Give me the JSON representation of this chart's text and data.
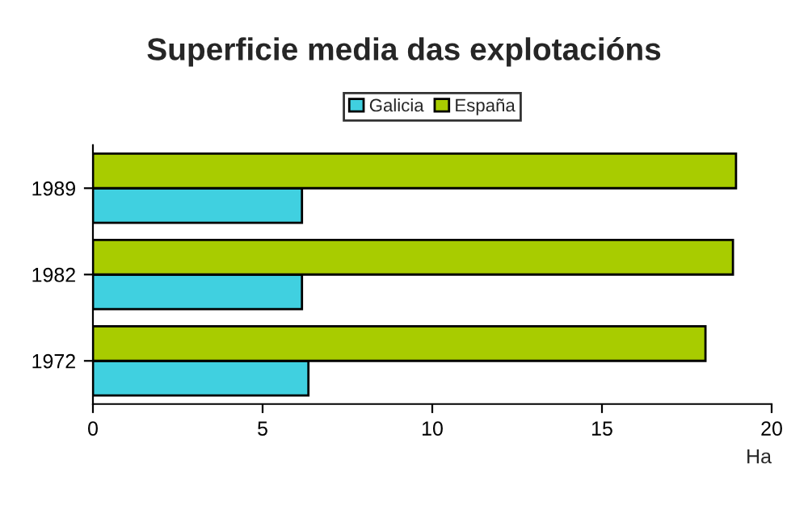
{
  "chart_data": {
    "type": "bar",
    "orientation": "horizontal",
    "title": "Superficie media das explotacións",
    "xlabel": "Ha",
    "categories": [
      "1989",
      "1982",
      "1972"
    ],
    "series": [
      {
        "name": "Galicia",
        "color": "#40d0e0",
        "values": [
          6.16,
          6.16,
          6.35
        ]
      },
      {
        "name": "España",
        "color": "#a8cc00",
        "values": [
          18.95,
          18.86,
          18.05
        ]
      }
    ],
    "xlim": [
      0,
      20
    ],
    "xticks": [
      0,
      5,
      10,
      15,
      20
    ],
    "grid": false,
    "legend": "top"
  }
}
